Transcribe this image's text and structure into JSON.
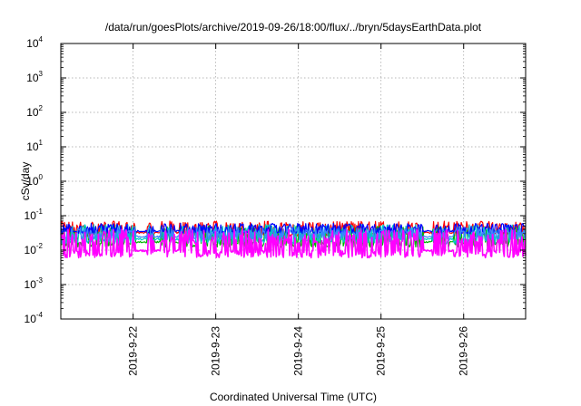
{
  "chart_data": {
    "type": "line",
    "title": "/data/run/goesPlots/archive/2019-09-26/18:00/flux/../bryn/5daysEarthData.plot",
    "xlabel": "Coordinated Universal Time (UTC)",
    "ylabel": "cSv/day",
    "yscale": "log",
    "ylim": [
      0.0001,
      10000
    ],
    "xlim": [
      "2019-09-21T03:00",
      "2019-09-26T18:00"
    ],
    "grid": true,
    "legend": "none",
    "y_ticks": [
      {
        "base": "10",
        "exp": "4"
      },
      {
        "base": "10",
        "exp": "3"
      },
      {
        "base": "10",
        "exp": "2"
      },
      {
        "base": "10",
        "exp": "1"
      },
      {
        "base": "10",
        "exp": "0"
      },
      {
        "base": "10",
        "exp": "-1"
      },
      {
        "base": "10",
        "exp": "-2"
      },
      {
        "base": "10",
        "exp": "-3"
      },
      {
        "base": "10",
        "exp": "-4"
      }
    ],
    "x_ticks": [
      "2019-9-22",
      "2019-9-23",
      "2019-9-24",
      "2019-9-25",
      "2019-9-26"
    ],
    "series": [
      {
        "color": "#ff0000",
        "typical_low": 0.025,
        "typical_high": 0.07
      },
      {
        "color": "#00b400",
        "typical_low": 0.012,
        "typical_high": 0.05
      },
      {
        "color": "#00c8c8",
        "typical_low": 0.015,
        "typical_high": 0.055
      },
      {
        "color": "#0000ff",
        "typical_low": 0.03,
        "typical_high": 0.06
      },
      {
        "color": "#3c82ff",
        "typical_low": 0.02,
        "typical_high": 0.045
      },
      {
        "color": "#ff00ff",
        "typical_low": 0.006,
        "typical_high": 0.04
      }
    ]
  }
}
